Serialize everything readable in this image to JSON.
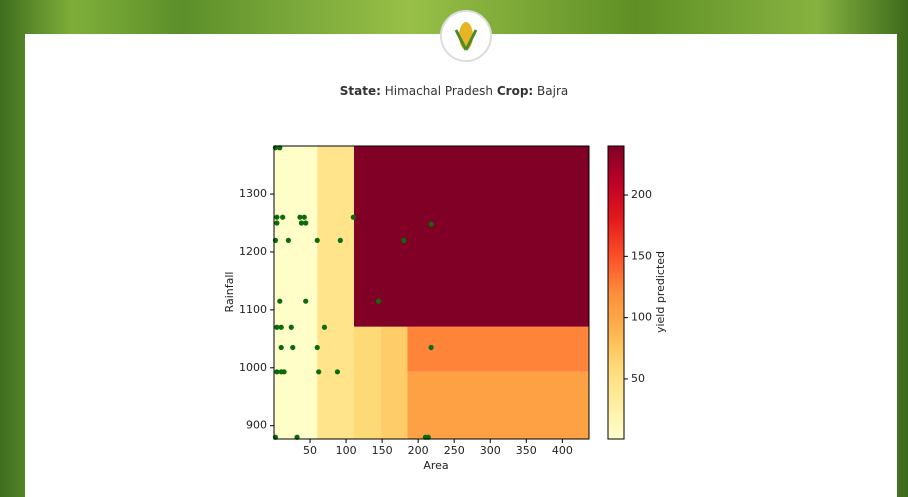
{
  "header": {
    "state_label": "State:",
    "state": "Himachal Pradesh",
    "crop_label": "Crop:",
    "crop": "Bajra"
  },
  "chart_data": {
    "type": "heatmap",
    "xlabel": "Area",
    "ylabel": "Rainfall",
    "colorbar_label": "yield predicted",
    "xlim": [
      0,
      437
    ],
    "xticks": [
      50,
      100,
      150,
      200,
      250,
      300,
      350,
      400
    ],
    "ylim": [
      877,
      1383
    ],
    "yticks": [
      900,
      1000,
      1100,
      1200,
      1300
    ],
    "clim": [
      1,
      240
    ],
    "cticks": [
      50,
      100,
      150,
      200
    ],
    "regions": [
      {
        "x": [
          0,
          60
        ],
        "y": [
          877,
          1383
        ],
        "value": 3
      },
      {
        "x": [
          60,
          111
        ],
        "y": [
          877,
          1383
        ],
        "value": 45
      },
      {
        "x": [
          111,
          148
        ],
        "y": [
          877,
          1071
        ],
        "value": 60
      },
      {
        "x": [
          148,
          185
        ],
        "y": [
          877,
          1071
        ],
        "value": 70
      },
      {
        "x": [
          185,
          437
        ],
        "y": [
          993,
          1071
        ],
        "value": 125
      },
      {
        "x": [
          185,
          437
        ],
        "y": [
          877,
          993
        ],
        "value": 105
      },
      {
        "x": [
          111,
          437
        ],
        "y": [
          1071,
          1383
        ],
        "value": 240
      }
    ],
    "points": {
      "color": "#0b6b0b",
      "x": [
        2,
        8,
        4,
        12,
        36,
        42,
        38,
        44,
        4,
        20,
        2,
        60,
        92,
        180,
        218,
        110,
        8,
        44,
        145,
        4,
        10,
        24,
        70,
        10,
        26,
        60,
        218,
        4,
        10,
        14,
        62,
        88,
        2,
        32,
        210,
        214
      ],
      "y": [
        1380,
        1380,
        1260,
        1260,
        1260,
        1260,
        1250,
        1250,
        1250,
        1220,
        1220,
        1220,
        1220,
        1220,
        1248,
        1260,
        1115,
        1115,
        1115,
        1070,
        1070,
        1070,
        1070,
        1035,
        1035,
        1035,
        1035,
        993,
        993,
        993,
        993,
        993,
        880,
        880,
        880,
        880
      ]
    }
  }
}
